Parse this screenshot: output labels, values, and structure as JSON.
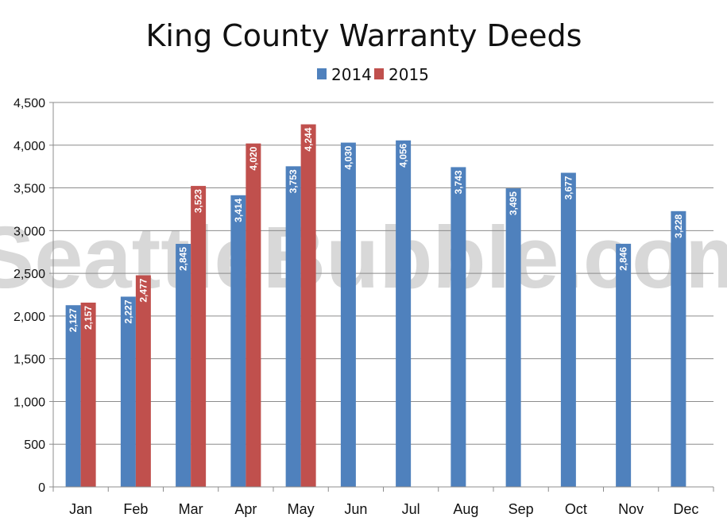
{
  "chart_data": {
    "type": "bar",
    "title": "King County Warranty Deeds",
    "watermark": "SeattleBubble.com",
    "categories": [
      "Jan",
      "Feb",
      "Mar",
      "Apr",
      "May",
      "Jun",
      "Jul",
      "Aug",
      "Sep",
      "Oct",
      "Nov",
      "Dec"
    ],
    "series": [
      {
        "name": "2014",
        "color": "#4f81bd",
        "values": [
          2127,
          2227,
          2845,
          3414,
          3753,
          4030,
          4056,
          3743,
          3495,
          3677,
          2846,
          3228
        ],
        "labels": [
          "2,127",
          "2,227",
          "2,845",
          "3,414",
          "3,753",
          "4,030",
          "4,056",
          "3,743",
          "3,495",
          "3,677",
          "2,846",
          "3,228"
        ]
      },
      {
        "name": "2015",
        "color": "#c0504d",
        "values": [
          2157,
          2477,
          3523,
          4020,
          4244,
          null,
          null,
          null,
          null,
          null,
          null,
          null
        ],
        "labels": [
          "2,157",
          "2,477",
          "3,523",
          "4,020",
          "4,244",
          "",
          "",
          "",
          "",
          "",
          "",
          ""
        ]
      }
    ],
    "ylim": [
      0,
      4500
    ],
    "yticks": [
      0,
      500,
      1000,
      1500,
      2000,
      2500,
      3000,
      3500,
      4000,
      4500
    ],
    "ytick_labels": [
      "0",
      "500",
      "1,000",
      "1,500",
      "2,000",
      "2,500",
      "3,000",
      "3,500",
      "4,000",
      "4,500"
    ],
    "grid": true,
    "legend_position": "top-center",
    "xlabel": "",
    "ylabel": ""
  }
}
